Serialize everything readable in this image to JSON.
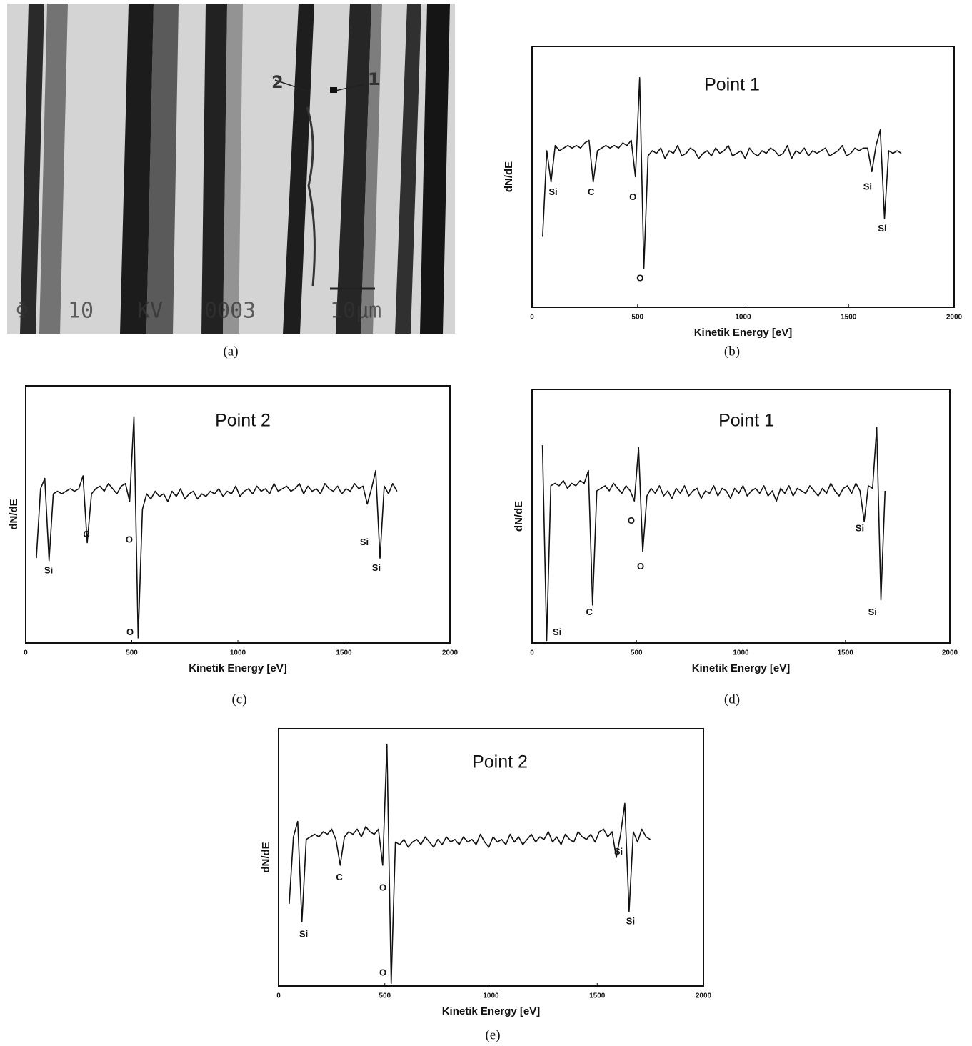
{
  "micrograph": {
    "markers": [
      "2",
      "1"
    ],
    "databar": [
      "Φ",
      "10",
      "KV",
      "0003",
      "10µm"
    ]
  },
  "captions": [
    "(a)",
    "(b)",
    "(c)",
    "(d)",
    "(e)"
  ],
  "chart_data": [
    {
      "type": "line",
      "title": "Point 1",
      "x_label": "Kinetik Energy [eV]",
      "y_label": "dN/dE",
      "xlim": [
        0,
        2000
      ],
      "xticks": [
        0,
        500,
        1000,
        1500,
        2000
      ],
      "ylim": [
        0,
        100
      ],
      "color": "#111111",
      "x": [
        50,
        70,
        90,
        110,
        130,
        150,
        170,
        190,
        210,
        230,
        250,
        270,
        290,
        310,
        330,
        350,
        370,
        390,
        410,
        430,
        450,
        470,
        490,
        510,
        530,
        550,
        570,
        590,
        610,
        630,
        650,
        670,
        690,
        710,
        730,
        750,
        770,
        790,
        810,
        830,
        850,
        870,
        890,
        910,
        930,
        950,
        970,
        990,
        1010,
        1030,
        1050,
        1070,
        1090,
        1110,
        1130,
        1150,
        1170,
        1190,
        1210,
        1230,
        1250,
        1270,
        1290,
        1310,
        1330,
        1350,
        1370,
        1390,
        1410,
        1430,
        1450,
        1470,
        1490,
        1510,
        1530,
        1550,
        1570,
        1590,
        1610,
        1630,
        1650,
        1670,
        1690,
        1710,
        1730,
        1750
      ],
      "values": [
        27,
        60,
        48,
        62,
        60,
        61,
        62,
        61,
        62,
        61,
        63,
        64,
        48,
        60,
        61,
        62,
        61,
        62,
        61,
        63,
        62,
        64,
        50,
        88,
        15,
        58,
        60,
        59,
        61,
        57,
        60,
        59,
        62,
        58,
        59,
        61,
        60,
        57,
        59,
        60,
        58,
        61,
        59,
        60,
        62,
        58,
        59,
        60,
        57,
        61,
        59,
        58,
        60,
        59,
        61,
        60,
        58,
        59,
        62,
        57,
        60,
        59,
        61,
        58,
        60,
        59,
        60,
        61,
        58,
        59,
        60,
        62,
        58,
        59,
        61,
        60,
        61,
        61,
        52,
        62,
        68,
        34,
        60,
        59,
        60,
        59
      ],
      "annotations": [
        {
          "text": "Si",
          "x": 100,
          "y": 44
        },
        {
          "text": "C",
          "x": 280,
          "y": 44
        },
        {
          "text": "O",
          "x": 478,
          "y": 42
        },
        {
          "text": "O",
          "x": 512,
          "y": 11
        },
        {
          "text": "Si",
          "x": 1590,
          "y": 46
        },
        {
          "text": "Si",
          "x": 1660,
          "y": 30
        }
      ]
    },
    {
      "type": "line",
      "title": "Point 2",
      "x_label": "Kinetik Energy [eV]",
      "y_label": "dN/dE",
      "xlim": [
        0,
        2000
      ],
      "xticks": [
        0,
        500,
        1000,
        1500,
        2000
      ],
      "ylim": [
        0,
        100
      ],
      "color": "#111111",
      "x": [
        50,
        70,
        90,
        110,
        130,
        150,
        170,
        190,
        210,
        230,
        250,
        270,
        290,
        310,
        330,
        350,
        370,
        390,
        410,
        430,
        450,
        470,
        490,
        510,
        530,
        550,
        570,
        590,
        610,
        630,
        650,
        670,
        690,
        710,
        730,
        750,
        770,
        790,
        810,
        830,
        850,
        870,
        890,
        910,
        930,
        950,
        970,
        990,
        1010,
        1030,
        1050,
        1070,
        1090,
        1110,
        1130,
        1150,
        1170,
        1190,
        1210,
        1230,
        1250,
        1270,
        1290,
        1310,
        1330,
        1350,
        1370,
        1390,
        1410,
        1430,
        1450,
        1470,
        1490,
        1510,
        1530,
        1550,
        1570,
        1590,
        1610,
        1630,
        1650,
        1670,
        1690,
        1710,
        1730,
        1750
      ],
      "values": [
        33,
        60,
        64,
        32,
        58,
        59,
        58,
        59,
        60,
        59,
        60,
        65,
        39,
        58,
        60,
        61,
        59,
        62,
        60,
        58,
        61,
        62,
        55,
        88,
        2,
        52,
        58,
        56,
        59,
        57,
        58,
        55,
        59,
        57,
        60,
        56,
        58,
        59,
        56,
        58,
        57,
        59,
        58,
        60,
        57,
        59,
        58,
        61,
        57,
        59,
        60,
        58,
        61,
        59,
        60,
        58,
        62,
        59,
        60,
        61,
        59,
        60,
        62,
        58,
        61,
        59,
        60,
        58,
        62,
        60,
        59,
        61,
        58,
        60,
        59,
        62,
        60,
        61,
        54,
        60,
        67,
        33,
        61,
        58,
        62,
        59
      ],
      "annotations": [
        {
          "text": "Si",
          "x": 108,
          "y": 28
        },
        {
          "text": "C",
          "x": 286,
          "y": 42
        },
        {
          "text": "O",
          "x": 488,
          "y": 40
        },
        {
          "text": "O",
          "x": 492,
          "y": 4
        },
        {
          "text": "Si",
          "x": 1596,
          "y": 39
        },
        {
          "text": "Si",
          "x": 1653,
          "y": 29
        }
      ]
    },
    {
      "type": "line",
      "title": "Point 1",
      "x_label": "Kinetik Energy [eV]",
      "y_label": "dN/dE",
      "xlim": [
        0,
        2000
      ],
      "xticks": [
        0,
        500,
        1000,
        1500,
        2000
      ],
      "ylim": [
        0,
        100
      ],
      "color": "#111111",
      "x": [
        50,
        70,
        90,
        110,
        130,
        150,
        170,
        190,
        210,
        230,
        250,
        270,
        290,
        310,
        330,
        350,
        370,
        390,
        410,
        430,
        450,
        470,
        490,
        510,
        530,
        550,
        570,
        590,
        610,
        630,
        650,
        670,
        690,
        710,
        730,
        750,
        770,
        790,
        810,
        830,
        850,
        870,
        890,
        910,
        930,
        950,
        970,
        990,
        1010,
        1030,
        1050,
        1070,
        1090,
        1110,
        1130,
        1150,
        1170,
        1190,
        1210,
        1230,
        1250,
        1270,
        1290,
        1310,
        1330,
        1350,
        1370,
        1390,
        1410,
        1430,
        1450,
        1470,
        1490,
        1510,
        1530,
        1550,
        1570,
        1590,
        1610,
        1630,
        1650,
        1670,
        1690,
        1710,
        1730,
        1750
      ],
      "values": [
        78,
        1,
        62,
        63,
        62,
        64,
        61,
        63,
        62,
        64,
        63,
        68,
        15,
        60,
        61,
        62,
        60,
        63,
        61,
        59,
        62,
        60,
        56,
        77,
        36,
        58,
        61,
        59,
        62,
        58,
        60,
        57,
        61,
        59,
        62,
        58,
        60,
        61,
        57,
        60,
        59,
        62,
        58,
        61,
        60,
        57,
        61,
        59,
        62,
        58,
        60,
        61,
        59,
        62,
        58,
        60,
        56,
        61,
        59,
        62,
        58,
        61,
        60,
        59,
        62,
        60,
        58,
        61,
        59,
        63,
        60,
        58,
        61,
        62,
        59,
        63,
        60,
        48,
        62,
        61,
        85,
        17,
        60,
        null,
        null,
        null
      ],
      "annotations": [
        {
          "text": "Si",
          "x": 120,
          "y": 4
        },
        {
          "text": "C",
          "x": 274,
          "y": 12
        },
        {
          "text": "O",
          "x": 475,
          "y": 48
        },
        {
          "text": "O",
          "x": 520,
          "y": 30
        },
        {
          "text": "Si",
          "x": 1569,
          "y": 45
        },
        {
          "text": "Si",
          "x": 1630,
          "y": 12
        }
      ]
    },
    {
      "type": "line",
      "title": "Point 2",
      "x_label": "Kinetik Energy [eV]",
      "y_label": "dN/dE",
      "xlim": [
        0,
        2000
      ],
      "xticks": [
        0,
        500,
        1000,
        1500,
        2000
      ],
      "ylim": [
        0,
        100
      ],
      "color": "#111111",
      "x": [
        50,
        70,
        90,
        110,
        130,
        150,
        170,
        190,
        210,
        230,
        250,
        270,
        290,
        310,
        330,
        350,
        370,
        390,
        410,
        430,
        450,
        470,
        490,
        510,
        530,
        550,
        570,
        590,
        610,
        630,
        650,
        670,
        690,
        710,
        730,
        750,
        770,
        790,
        810,
        830,
        850,
        870,
        890,
        910,
        930,
        950,
        970,
        990,
        1010,
        1030,
        1050,
        1070,
        1090,
        1110,
        1130,
        1150,
        1170,
        1190,
        1210,
        1230,
        1250,
        1270,
        1290,
        1310,
        1330,
        1350,
        1370,
        1390,
        1410,
        1430,
        1450,
        1470,
        1490,
        1510,
        1530,
        1550,
        1570,
        1590,
        1610,
        1630,
        1650,
        1670,
        1690,
        1710,
        1730,
        1750
      ],
      "values": [
        32,
        58,
        64,
        25,
        57,
        58,
        59,
        58,
        60,
        59,
        61,
        57,
        47,
        58,
        60,
        59,
        61,
        58,
        62,
        60,
        59,
        61,
        47,
        94,
        1,
        56,
        55,
        57,
        54,
        56,
        57,
        55,
        58,
        56,
        54,
        57,
        55,
        58,
        56,
        57,
        55,
        58,
        56,
        57,
        55,
        59,
        56,
        54,
        58,
        56,
        57,
        55,
        59,
        56,
        58,
        55,
        57,
        59,
        56,
        58,
        57,
        60,
        56,
        58,
        55,
        59,
        57,
        56,
        60,
        58,
        57,
        59,
        56,
        60,
        61,
        58,
        60,
        50,
        59,
        71,
        29,
        60,
        56,
        61,
        58,
        57
      ],
      "annotations": [
        {
          "text": "Si",
          "x": 118,
          "y": 20
        },
        {
          "text": "C",
          "x": 286,
          "y": 42
        },
        {
          "text": "O",
          "x": 491,
          "y": 38
        },
        {
          "text": "O",
          "x": 491,
          "y": 5
        },
        {
          "text": "Si",
          "x": 1600,
          "y": 52
        },
        {
          "text": "Si",
          "x": 1657,
          "y": 25
        }
      ]
    }
  ]
}
